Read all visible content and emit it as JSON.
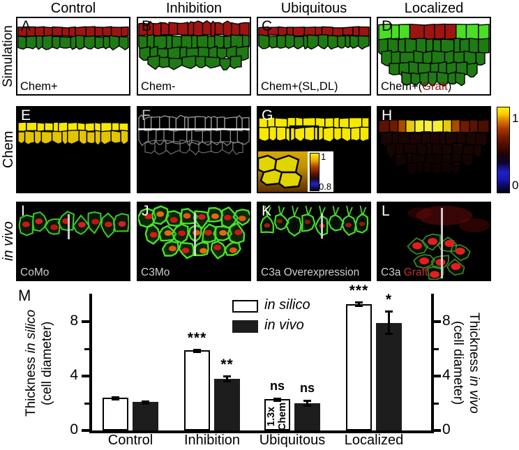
{
  "titles": [
    "Control",
    "Inhibition",
    "Ubiquitous",
    "Localized"
  ],
  "row_labels": {
    "simulation": "Simulation",
    "chem": "Chem",
    "in_vivo": "in vivo"
  },
  "simulation": {
    "panels": [
      {
        "letter": "A",
        "caption_pre": "Chem+",
        "caption_red": "",
        "caption_post": ""
      },
      {
        "letter": "B",
        "caption_pre": "Chem-",
        "caption_red": "",
        "caption_post": ""
      },
      {
        "letter": "C",
        "caption_pre": "Chem+(SL,DL)",
        "caption_red": "",
        "caption_post": ""
      },
      {
        "letter": "D",
        "caption_pre": "Chem+(",
        "caption_red": "Graft",
        "caption_post": ")"
      }
    ]
  },
  "chem": {
    "panels": [
      {
        "letter": "E"
      },
      {
        "letter": "F"
      },
      {
        "letter": "G"
      },
      {
        "letter": "H"
      }
    ],
    "colorbar": {
      "max_label": "1",
      "min_label": "0"
    },
    "inset": {
      "max_label": "1",
      "min_label": "0.8"
    }
  },
  "in_vivo": {
    "panels": [
      {
        "letter": "I",
        "caption_pre": "CoMo",
        "caption_red": ""
      },
      {
        "letter": "J",
        "caption_pre": "C3Mo",
        "caption_red": ""
      },
      {
        "letter": "K",
        "caption_pre": "C3a Overexpression",
        "caption_red": ""
      },
      {
        "letter": "L",
        "caption_pre": "C3a ",
        "caption_red": "Graft"
      }
    ]
  },
  "chart_data": {
    "type": "bar",
    "panel_letter": "M",
    "categories": [
      "Control",
      "Inhibition",
      "Ubiquitous",
      "Localized"
    ],
    "series": [
      {
        "name": "in silico",
        "fill": "#ffffff",
        "values": [
          2.4,
          5.9,
          2.3,
          9.3
        ],
        "errors": [
          0.1,
          0.12,
          0.12,
          0.2
        ],
        "significance": [
          "",
          "***",
          "ns",
          "***"
        ]
      },
      {
        "name": "in vivo",
        "fill": "#1d1d1d",
        "values": [
          2.1,
          3.8,
          2.0,
          7.9
        ],
        "errors": [
          0.12,
          0.25,
          0.25,
          0.9
        ],
        "significance": [
          "",
          "**",
          "ns",
          "*"
        ]
      }
    ],
    "left_axis": {
      "label_pre": "Thickness ",
      "label_italic": "in silico",
      "label_line2": "(cell diameter)",
      "ticks": [
        0,
        4,
        8
      ]
    },
    "right_axis": {
      "label_pre": "Thickness ",
      "label_italic": "in vivo",
      "label_line2": "(cell diameter)",
      "ticks": [
        0,
        4,
        8
      ]
    },
    "minor_ticks": [
      2,
      6
    ],
    "ylim": [
      0,
      10
    ],
    "legend_position": "top-center",
    "annotation": {
      "category_index": 2,
      "series_index": 0,
      "lines": [
        "1.3x",
        "Chem"
      ]
    }
  },
  "colors": {
    "cell_red": "#9e1411",
    "cell_green": "#1f7a14",
    "bright_green": "#4ade25",
    "chem_yellow": "#f6e800",
    "chem_yellow2": "#e3c400",
    "vivo_green": "#46d42c",
    "nucleus_red": "#d41a1a",
    "graft_text_red": "#8b1616",
    "invivo_graft_red": "#c03030",
    "bar_dark": "#1d1d1d",
    "colorbar_top": "#fff200",
    "colorbar_bottom": "#000000"
  }
}
